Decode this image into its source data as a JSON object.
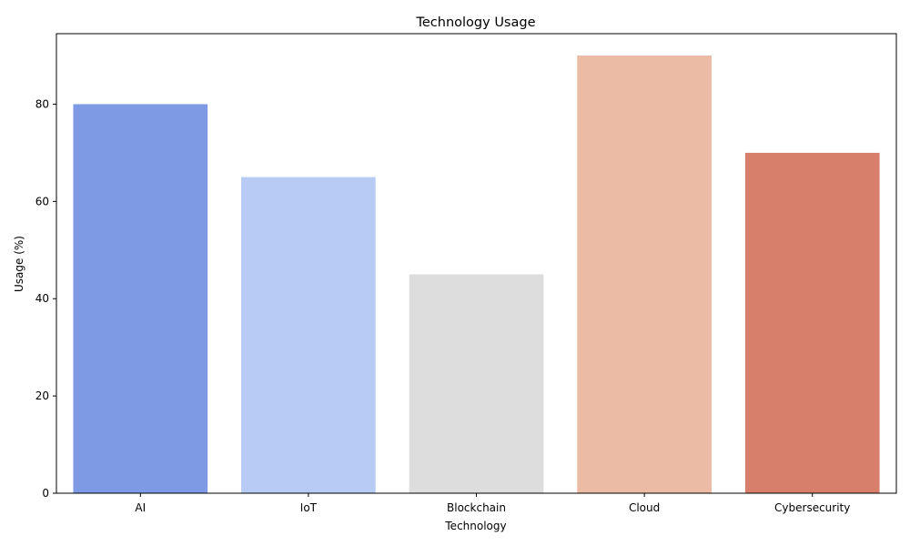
{
  "chart_data": {
    "type": "bar",
    "title": "Technology Usage",
    "xlabel": "Technology",
    "ylabel": "Usage (%)",
    "categories": [
      "AI",
      "IoT",
      "Blockchain",
      "Cloud",
      "Cybersecurity"
    ],
    "values": [
      80,
      65,
      45,
      90,
      70
    ],
    "colors": [
      "#7f9ae4",
      "#b7cbf4",
      "#dddddd",
      "#ecbba5",
      "#d77f6b"
    ],
    "ylim": [
      0,
      94.5
    ],
    "yticks": [
      0,
      20,
      40,
      60,
      80
    ],
    "grid": false,
    "legend": "none"
  }
}
